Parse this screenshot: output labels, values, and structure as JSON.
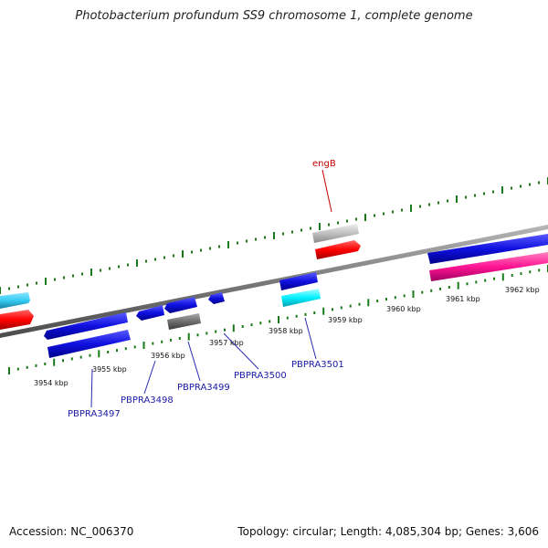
{
  "title": "Photobacterium profundum SS9 chromosome 1, complete genome",
  "footer": {
    "accession": "Accession: NC_006370",
    "topology": "Topology: circular; Length: 4,085,304 bp; Genes: 3,606"
  },
  "scale_labels": [
    "3954 kbp",
    "3955 kbp",
    "3956 kbp",
    "3957 kbp",
    "3958 kbp",
    "3959 kbp",
    "3960 kbp",
    "3961 kbp",
    "3962 kbp"
  ],
  "gene_labels": {
    "engB": "engB",
    "PBPRA3497": "PBPRA3497",
    "PBPRA3498": "PBPRA3498",
    "PBPRA3499": "PBPRA3499",
    "PBPRA3500": "PBPRA3500",
    "PBPRA3501": "PBPRA3501"
  },
  "colors": {
    "backbone": "#808080",
    "tick": "#1a7a1a",
    "blue": "#1010e0",
    "red": "#ff0000",
    "cyan": "#00e5ff",
    "light_cyan": "#33ccf2",
    "gray": "#6e6e6e",
    "light_gray": "#c0c0c0",
    "pink": "#ff1493",
    "label_line": "#2a2ab0"
  }
}
